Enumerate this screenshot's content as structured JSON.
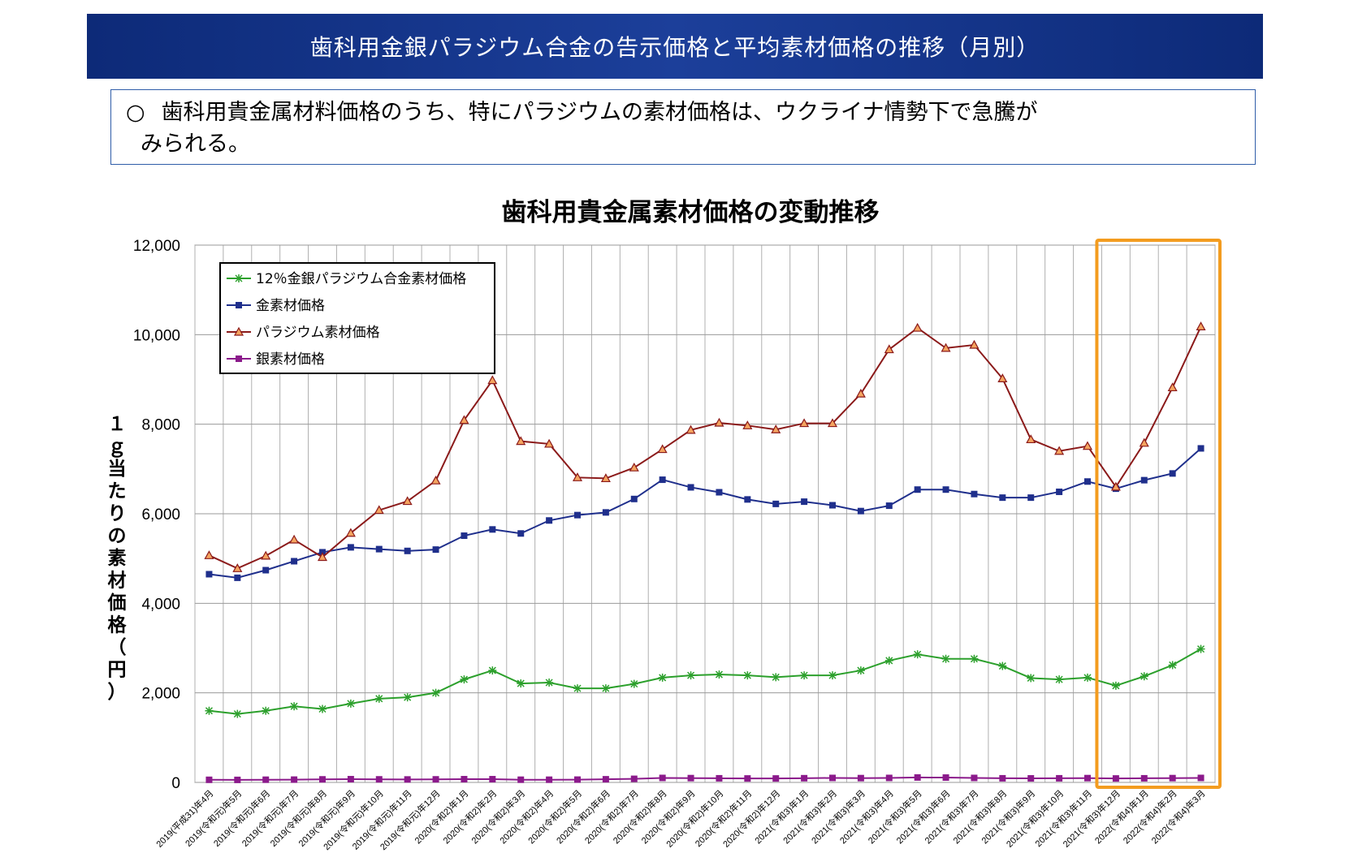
{
  "banner": {
    "title": "歯科用金銀パラジウム合金の告示価格と平均素材価格の推移（月別）"
  },
  "note": {
    "bullet": "○",
    "line1": "歯科用貴金属材料価格のうち、特にパラジウムの素材価格は、ウクライナ情勢下で急騰が",
    "line2": "みられる。"
  },
  "chart_data": {
    "type": "line",
    "title": "歯科用貴金属素材価格の変動推移",
    "ylabel": "１ｇ当たりの素材価格（円）",
    "xlabel": "",
    "ylim": [
      0,
      12000
    ],
    "yticks": [
      "0",
      "2,000",
      "4,000",
      "6,000",
      "8,000",
      "10,000",
      "12,000"
    ],
    "grid": true,
    "legend_position": "top-left",
    "highlight": {
      "from": "2021(令和3)年12月",
      "to": "2022(令和4)年3月",
      "color": "#f39c1f"
    },
    "categories": [
      "2019(平成31)年4月",
      "2019(令和元)年5月",
      "2019(令和元)年6月",
      "2019(令和元)年7月",
      "2019(令和元)年8月",
      "2019(令和元)年9月",
      "2019(令和元)年10月",
      "2019(令和元)年11月",
      "2019(令和元)年12月",
      "2020(令和2)年1月",
      "2020(令和2)年2月",
      "2020(令和2)年3月",
      "2020(令和2)年4月",
      "2020(令和2)年5月",
      "2020(令和2)年6月",
      "2020(令和2)年7月",
      "2020(令和2)年8月",
      "2020(令和2)年9月",
      "2020(令和2)年10月",
      "2020(令和2)年11月",
      "2020(令和2)年12月",
      "2021(令和3)年1月",
      "2021(令和3)年2月",
      "2021(令和3)年3月",
      "2021(令和3)年4月",
      "2021(令和3)年5月",
      "2021(令和3)年6月",
      "2021(令和3)年7月",
      "2021(令和3)年8月",
      "2021(令和3)年9月",
      "2021(令和3)年10月",
      "2021(令和3)年11月",
      "2021(令和3)年12月",
      "2022(令和4)年1月",
      "2022(令和4)年2月",
      "2022(令和4)年3月"
    ],
    "series": [
      {
        "name": "12％金銀パラジウム合金素材価格",
        "color": "#2ca02c",
        "marker": "star",
        "values": [
          1600,
          1530,
          1600,
          1700,
          1640,
          1760,
          1870,
          1900,
          2000,
          2300,
          2500,
          2210,
          2230,
          2100,
          2100,
          2200,
          2340,
          2390,
          2410,
          2390,
          2350,
          2390,
          2390,
          2500,
          2720,
          2860,
          2760,
          2760,
          2600,
          2330,
          2300,
          2340,
          2160,
          2370,
          2620,
          2980
        ]
      },
      {
        "name": "金素材価格",
        "color": "#1f2f8c",
        "marker": "square",
        "values": [
          4650,
          4570,
          4740,
          4940,
          5140,
          5250,
          5210,
          5170,
          5200,
          5510,
          5650,
          5560,
          5850,
          5970,
          6030,
          6330,
          6760,
          6590,
          6480,
          6320,
          6220,
          6270,
          6190,
          6060,
          6180,
          6540,
          6540,
          6440,
          6360,
          6360,
          6490,
          6720,
          6560,
          6750,
          6900,
          7460
        ]
      },
      {
        "name": "パラジウム素材価格",
        "color": "#8b1a1a",
        "marker": "triangle",
        "values": [
          5070,
          4780,
          5060,
          5420,
          5030,
          5570,
          6080,
          6280,
          6740,
          8090,
          8980,
          7620,
          7560,
          6810,
          6790,
          7030,
          7440,
          7870,
          8030,
          7970,
          7880,
          8020,
          8020,
          8680,
          9670,
          10150,
          9700,
          9770,
          9020,
          7660,
          7400,
          7510,
          6600,
          7580,
          8820,
          10180
        ]
      },
      {
        "name": "銀素材価格",
        "color": "#8b1a8b",
        "marker": "square",
        "values": [
          58,
          56,
          60,
          62,
          68,
          72,
          68,
          66,
          68,
          72,
          72,
          60,
          60,
          62,
          70,
          80,
          100,
          96,
          92,
          88,
          88,
          94,
          100,
          96,
          100,
          110,
          108,
          100,
          92,
          90,
          92,
          96,
          88,
          92,
          96,
          100
        ]
      }
    ]
  }
}
